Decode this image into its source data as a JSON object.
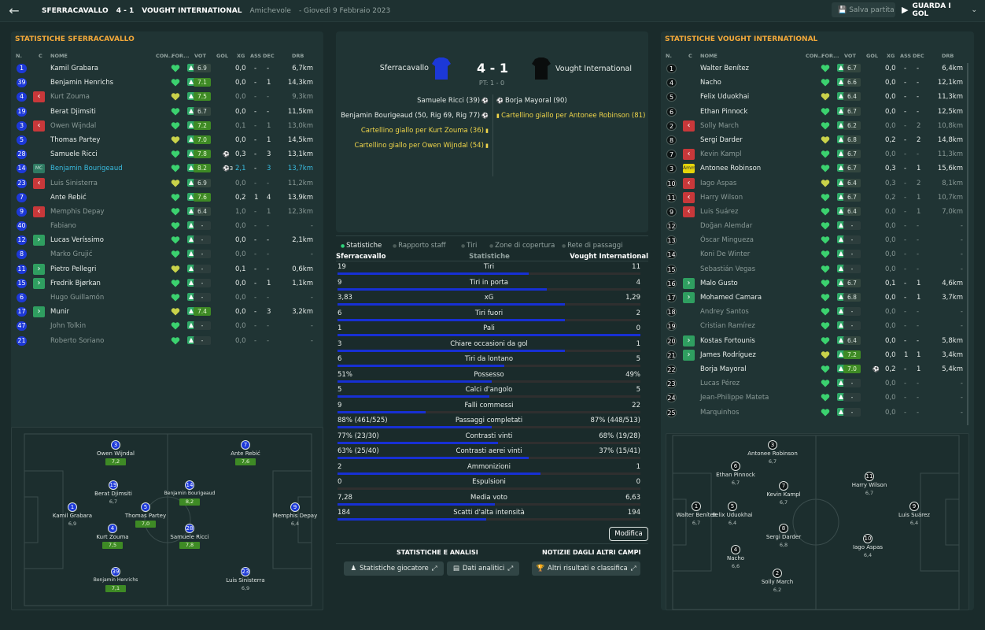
{
  "header": {
    "home": "SFERRACAVALLO",
    "score": "4 - 1",
    "away": "VOUGHT INTERNATIONAL",
    "competition": "Amichevole",
    "date": "Giovedì 9 Febbraio 2023",
    "save_label": "Salva partita",
    "watch_label": "GUARDA I GOL"
  },
  "columns": {
    "num": "N.",
    "c": "C",
    "name": "NOME",
    "con": "CON...",
    "form": "FOR...",
    "vot": "VOT",
    "gol": "GOL",
    "xg": "XG",
    "ass": "ASS",
    "dec": "DEC",
    "drb": "DRB"
  },
  "home_panel": {
    "title": "Statistiche Sferracavallo",
    "players": [
      {
        "num": "1",
        "style": "b",
        "name": "Kamil Grabara",
        "rating": "6.9",
        "rc": "n",
        "gol": "",
        "xg": "0,0",
        "ass": "-",
        "dec": "-",
        "drb": "6,7km"
      },
      {
        "num": "39",
        "style": "b",
        "name": "Benjamin Henrichs",
        "rating": "7.1",
        "rc": "g",
        "gol": "",
        "xg": "0,0",
        "ass": "-",
        "dec": "1",
        "drb": "14,3km"
      },
      {
        "num": "4",
        "style": "b",
        "sub": "out",
        "name": "Kurt Zouma",
        "dim": true,
        "rating": "7.5",
        "rc": "g",
        "gol": "",
        "xg": "0,0",
        "ass": "-",
        "dec": "-",
        "drb": "9,3km"
      },
      {
        "num": "19",
        "style": "b",
        "name": "Berat Djimsiti",
        "rating": "6.7",
        "rc": "n",
        "gol": "",
        "xg": "0,0",
        "ass": "-",
        "dec": "-",
        "drb": "11,5km"
      },
      {
        "num": "3",
        "style": "b",
        "sub": "out",
        "name": "Owen Wijndal",
        "dim": true,
        "rating": "7.2",
        "rc": "g",
        "gol": "",
        "xg": "0,1",
        "ass": "-",
        "dec": "1",
        "drb": "13,0km"
      },
      {
        "num": "5",
        "style": "b",
        "name": "Thomas Partey",
        "rating": "7.0",
        "rc": "g",
        "gol": "",
        "xg": "0,0",
        "ass": "-",
        "dec": "1",
        "drb": "14,5km"
      },
      {
        "num": "28",
        "style": "b",
        "name": "Samuele Ricci",
        "rating": "7.8",
        "rc": "g",
        "gol": "1",
        "xg": "0,3",
        "ass": "-",
        "dec": "3",
        "drb": "13,1km"
      },
      {
        "num": "14",
        "style": "b",
        "pos": "MC",
        "name": "Benjamin Bourigeaud",
        "sel": true,
        "rating": "8.2",
        "rc": "g",
        "gol": "3",
        "xg": "2,1",
        "ass": "-",
        "dec": "3",
        "drb": "13,7km"
      },
      {
        "num": "23",
        "style": "b",
        "sub": "out",
        "name": "Luis Sinisterra",
        "dim": true,
        "rating": "6.9",
        "rc": "n",
        "gol": "",
        "xg": "0,0",
        "ass": "-",
        "dec": "-",
        "drb": "11,2km"
      },
      {
        "num": "7",
        "style": "b",
        "name": "Ante Rebić",
        "rating": "7.6",
        "rc": "g",
        "gol": "",
        "xg": "0,2",
        "ass": "1",
        "dec": "4",
        "drb": "13,9km"
      },
      {
        "num": "9",
        "style": "b",
        "sub": "out",
        "name": "Memphis Depay",
        "dim": true,
        "rating": "6.4",
        "rc": "n",
        "gol": "",
        "xg": "1,0",
        "ass": "-",
        "dec": "1",
        "drb": "12,3km"
      },
      {
        "num": "40",
        "style": "b",
        "name": "Fabiano",
        "dim": true,
        "rating": "-",
        "rc": "na",
        "gol": "",
        "xg": "0,0",
        "ass": "-",
        "dec": "-",
        "drb": "-"
      },
      {
        "num": "12",
        "style": "b",
        "sub": "in",
        "name": "Lucas Veríssimo",
        "rating": "-",
        "rc": "na",
        "gol": "",
        "xg": "0,0",
        "ass": "-",
        "dec": "-",
        "drb": "2,1km"
      },
      {
        "num": "8",
        "style": "b",
        "name": "Marko Grujić",
        "dim": true,
        "rating": "-",
        "rc": "na",
        "gol": "",
        "xg": "0,0",
        "ass": "-",
        "dec": "-",
        "drb": "-"
      },
      {
        "num": "11",
        "style": "b",
        "sub": "in",
        "name": "Pietro Pellegri",
        "rating": "-",
        "rc": "na",
        "gol": "",
        "xg": "0,1",
        "ass": "-",
        "dec": "-",
        "drb": "0,6km"
      },
      {
        "num": "15",
        "style": "b",
        "sub": "in",
        "name": "Fredrik Bjørkan",
        "rating": "-",
        "rc": "na",
        "gol": "",
        "xg": "0,0",
        "ass": "-",
        "dec": "1",
        "drb": "1,1km"
      },
      {
        "num": "6",
        "style": "b",
        "name": "Hugo Guillamón",
        "dim": true,
        "rating": "-",
        "rc": "na",
        "gol": "",
        "xg": "0,0",
        "ass": "-",
        "dec": "-",
        "drb": "-"
      },
      {
        "num": "17",
        "style": "b",
        "sub": "in",
        "name": "Munir",
        "rating": "7.4",
        "rc": "g",
        "gol": "",
        "xg": "0,0",
        "ass": "-",
        "dec": "3",
        "drb": "3,2km"
      },
      {
        "num": "47",
        "style": "b",
        "name": "John Tolkin",
        "dim": true,
        "rating": "-",
        "rc": "na",
        "gol": "",
        "xg": "0,0",
        "ass": "-",
        "dec": "-",
        "drb": "-"
      },
      {
        "num": "21",
        "style": "b",
        "name": "Roberto Soriano",
        "dim": true,
        "rating": "-",
        "rc": "na",
        "gol": "",
        "xg": "0,0",
        "ass": "-",
        "dec": "-",
        "drb": "-"
      }
    ],
    "pitch": [
      {
        "num": "3",
        "name": "Owen Wijndal",
        "rating": "7,2",
        "g": true
      },
      {
        "num": "7",
        "name": "Ante Rebić",
        "rating": "7,6",
        "g": true
      },
      {
        "num": "19",
        "name": "Berat Djimsiti",
        "rating": "6,7",
        "g": false
      },
      {
        "num": "14",
        "name": "Benjamin Bourigeaud",
        "rating": "8,2",
        "g": true
      },
      {
        "num": "1",
        "name": "Kamil Grabara",
        "rating": "6,9",
        "g": false
      },
      {
        "num": "5",
        "name": "Thomas Partey",
        "rating": "7,0",
        "g": true
      },
      {
        "num": "9",
        "name": "Memphis Depay",
        "rating": "6,4",
        "g": false
      },
      {
        "num": "4",
        "name": "Kurt Zouma",
        "rating": "7,5",
        "g": true
      },
      {
        "num": "28",
        "name": "Samuele Ricci",
        "rating": "7,8",
        "g": true
      },
      {
        "num": "39",
        "name": "Benjamin Henrichs",
        "rating": "7,1",
        "g": true
      },
      {
        "num": "23",
        "name": "Luis Sinisterra",
        "rating": "6,9",
        "g": false
      }
    ]
  },
  "away_panel": {
    "title": "Statistiche Vought International",
    "players": [
      {
        "num": "1",
        "style": "k",
        "name": "Walter Benítez",
        "rating": "6.7",
        "rc": "n",
        "gol": "",
        "xg": "0,0",
        "ass": "-",
        "dec": "-",
        "drb": "6,4km"
      },
      {
        "num": "4",
        "style": "k",
        "name": "Nacho",
        "rating": "6.6",
        "rc": "n",
        "gol": "",
        "xg": "0,0",
        "ass": "-",
        "dec": "-",
        "drb": "12,1km"
      },
      {
        "num": "5",
        "style": "k",
        "name": "Felix Uduokhai",
        "rating": "6.4",
        "rc": "n",
        "gol": "",
        "xg": "0,0",
        "ass": "-",
        "dec": "-",
        "drb": "11,3km"
      },
      {
        "num": "6",
        "style": "k",
        "name": "Ethan Pinnock",
        "rating": "6.7",
        "rc": "n",
        "gol": "",
        "xg": "0,0",
        "ass": "-",
        "dec": "-",
        "drb": "12,5km"
      },
      {
        "num": "2",
        "style": "k",
        "sub": "out",
        "name": "Solly March",
        "dim": true,
        "rating": "6.2",
        "rc": "n",
        "gol": "",
        "xg": "0,0",
        "ass": "-",
        "dec": "2",
        "drb": "10,8km"
      },
      {
        "num": "8",
        "style": "k",
        "name": "Sergi Darder",
        "rating": "6.8",
        "rc": "n",
        "gol": "",
        "xg": "0,2",
        "ass": "-",
        "dec": "2",
        "drb": "14,8km"
      },
      {
        "num": "7",
        "style": "k",
        "sub": "out",
        "name": "Kevin Kampl",
        "dim": true,
        "rating": "6.7",
        "rc": "n",
        "gol": "",
        "xg": "0,0",
        "ass": "-",
        "dec": "-",
        "drb": "11,3km"
      },
      {
        "num": "3",
        "style": "k",
        "pos": "Amm",
        "name": "Antonee Robinson",
        "rating": "6.7",
        "rc": "n",
        "gol": "",
        "xg": "0,3",
        "ass": "-",
        "dec": "1",
        "drb": "15,6km"
      },
      {
        "num": "10",
        "style": "k",
        "sub": "out",
        "name": "Iago Aspas",
        "dim": true,
        "rating": "6.4",
        "rc": "n",
        "gol": "",
        "xg": "0,3",
        "ass": "-",
        "dec": "2",
        "drb": "8,1km"
      },
      {
        "num": "11",
        "style": "k",
        "sub": "out",
        "name": "Harry Wilson",
        "dim": true,
        "rating": "6.7",
        "rc": "n",
        "gol": "",
        "xg": "0,2",
        "ass": "-",
        "dec": "1",
        "drb": "10,7km"
      },
      {
        "num": "9",
        "style": "k",
        "sub": "out",
        "name": "Luis Suárez",
        "dim": true,
        "rating": "6.4",
        "rc": "n",
        "gol": "",
        "xg": "0,0",
        "ass": "-",
        "dec": "1",
        "drb": "7,0km"
      },
      {
        "num": "12",
        "style": "k",
        "name": "Doğan Alemdar",
        "dim": true,
        "rating": "-",
        "rc": "na",
        "gol": "",
        "xg": "0,0",
        "ass": "-",
        "dec": "-",
        "drb": "-"
      },
      {
        "num": "13",
        "style": "k",
        "name": "Óscar Mingueza",
        "dim": true,
        "rating": "-",
        "rc": "na",
        "gol": "",
        "xg": "0,0",
        "ass": "-",
        "dec": "-",
        "drb": "-"
      },
      {
        "num": "14",
        "style": "k",
        "name": "Koni De Winter",
        "dim": true,
        "rating": "-",
        "rc": "na",
        "gol": "",
        "xg": "0,0",
        "ass": "-",
        "dec": "-",
        "drb": "-"
      },
      {
        "num": "15",
        "style": "k",
        "name": "Sebastián Vegas",
        "dim": true,
        "rating": "-",
        "rc": "na",
        "gol": "",
        "xg": "0,0",
        "ass": "-",
        "dec": "-",
        "drb": "-"
      },
      {
        "num": "16",
        "style": "k",
        "sub": "in",
        "name": "Malo Gusto",
        "rating": "6.7",
        "rc": "n",
        "gol": "",
        "xg": "0,1",
        "ass": "-",
        "dec": "1",
        "drb": "4,6km"
      },
      {
        "num": "17",
        "style": "k",
        "sub": "in",
        "name": "Mohamed Camara",
        "rating": "6.8",
        "rc": "n",
        "gol": "",
        "xg": "0,0",
        "ass": "-",
        "dec": "1",
        "drb": "3,7km"
      },
      {
        "num": "18",
        "style": "k",
        "name": "Andrey Santos",
        "dim": true,
        "rating": "-",
        "rc": "na",
        "gol": "",
        "xg": "0,0",
        "ass": "-",
        "dec": "-",
        "drb": "-"
      },
      {
        "num": "19",
        "style": "k",
        "name": "Cristian Ramírez",
        "dim": true,
        "rating": "-",
        "rc": "na",
        "gol": "",
        "xg": "0,0",
        "ass": "-",
        "dec": "-",
        "drb": "-"
      },
      {
        "num": "20",
        "style": "k",
        "sub": "in",
        "name": "Kostas Fortounis",
        "rating": "6.4",
        "rc": "n",
        "gol": "",
        "xg": "0,0",
        "ass": "-",
        "dec": "-",
        "drb": "5,8km"
      },
      {
        "num": "21",
        "style": "k",
        "sub": "in",
        "name": "James Rodríguez",
        "rating": "7.2",
        "rc": "g",
        "gol": "",
        "xg": "0,0",
        "ass": "1",
        "dec": "1",
        "drb": "3,4km"
      },
      {
        "num": "22",
        "style": "k",
        "name": "Borja Mayoral",
        "rating": "7.0",
        "rc": "g",
        "gol": "1",
        "xg": "0,2",
        "ass": "-",
        "dec": "1",
        "drb": "5,4km"
      },
      {
        "num": "23",
        "style": "k",
        "name": "Lucas Pérez",
        "dim": true,
        "rating": "-",
        "rc": "na",
        "gol": "",
        "xg": "0,0",
        "ass": "-",
        "dec": "-",
        "drb": "-"
      },
      {
        "num": "24",
        "style": "k",
        "name": "Jean-Philippe Mateta",
        "dim": true,
        "rating": "-",
        "rc": "na",
        "gol": "",
        "xg": "0,0",
        "ass": "-",
        "dec": "-",
        "drb": "-"
      },
      {
        "num": "25",
        "style": "k",
        "name": "Marquinhos",
        "dim": true,
        "rating": "-",
        "rc": "na",
        "gol": "",
        "xg": "0,0",
        "ass": "-",
        "dec": "-",
        "drb": "-"
      }
    ],
    "pitch": [
      {
        "num": "3",
        "name": "Antonee Robinson",
        "rating": "6,7"
      },
      {
        "num": "6",
        "name": "Ethan Pinnock",
        "rating": "6,7"
      },
      {
        "num": "7",
        "name": "Kevin Kampl",
        "rating": "6,7"
      },
      {
        "num": "11",
        "name": "Harry Wilson",
        "rating": "6,7"
      },
      {
        "num": "1",
        "name": "Walter Benítez",
        "rating": "6,7"
      },
      {
        "num": "5",
        "name": "Felix Uduokhai",
        "rating": "6,4"
      },
      {
        "num": "9",
        "name": "Luis Suárez",
        "rating": "6,4"
      },
      {
        "num": "8",
        "name": "Sergi Darder",
        "rating": "6,8"
      },
      {
        "num": "10",
        "name": "Iago Aspas",
        "rating": "6,4"
      },
      {
        "num": "4",
        "name": "Nacho",
        "rating": "6,6"
      },
      {
        "num": "2",
        "name": "Solly March",
        "rating": "6,2"
      }
    ]
  },
  "match": {
    "home_team": "Sferracavallo",
    "away_team": "Vought International",
    "score": "4 - 1",
    "halftime": "PT: 1 - 0",
    "home_events": [
      {
        "text": "Samuele Ricci (39)",
        "type": "goal"
      },
      {
        "text": "Benjamin Bourigeaud (50, Rig 69, Rig 77)",
        "type": "goal"
      },
      {
        "text": "Cartellino giallo per Kurt Zouma (36)",
        "type": "yellow"
      },
      {
        "text": "Cartellino giallo per Owen Wijndal (54)",
        "type": "yellow"
      }
    ],
    "away_events": [
      {
        "text": "Borja Mayoral (90)",
        "type": "goal"
      },
      {
        "text": "Cartellino giallo per Antonee Robinson (81)",
        "type": "yellow"
      }
    ]
  },
  "tabs": [
    "Statistiche",
    "Rapporto staff",
    "Tiri",
    "Zone di copertura",
    "Rete di passaggi"
  ],
  "stats_header": {
    "home": "Sferracavallo",
    "mid": "Statistiche",
    "away": "Vought International"
  },
  "stats": [
    {
      "name": "Tiri",
      "home": "19",
      "away": "11",
      "frac": 0.63
    },
    {
      "name": "Tiri in porta",
      "home": "9",
      "away": "4",
      "frac": 0.69
    },
    {
      "name": "xG",
      "home": "3,83",
      "away": "1,29",
      "frac": 0.75
    },
    {
      "name": "Tiri fuori",
      "home": "6",
      "away": "2",
      "frac": 0.75
    },
    {
      "name": "Pali",
      "home": "1",
      "away": "0",
      "frac": 1.0
    },
    {
      "name": "Chiare occasioni da gol",
      "home": "3",
      "away": "1",
      "frac": 0.75
    },
    {
      "name": "Tiri da lontano",
      "home": "6",
      "away": "5",
      "frac": 0.55
    },
    {
      "name": "Possesso",
      "home": "51%",
      "away": "49%",
      "frac": 0.51
    },
    {
      "name": "Calci d'angolo",
      "home": "5",
      "away": "5",
      "frac": 0.5
    },
    {
      "name": "Falli commessi",
      "home": "9",
      "away": "22",
      "frac": 0.29
    },
    {
      "name": "Passaggi completati",
      "home": "88% (461/525)",
      "away": "87% (448/513)",
      "frac": 0.51
    },
    {
      "name": "Contrasti vinti",
      "home": "77% (23/30)",
      "away": "68% (19/28)",
      "frac": 0.53
    },
    {
      "name": "Contrasti aerei vinti",
      "home": "63% (25/40)",
      "away": "37% (15/41)",
      "frac": 0.63
    },
    {
      "name": "Ammonizioni",
      "home": "2",
      "away": "1",
      "frac": 0.67
    },
    {
      "name": "Espulsioni",
      "home": "0",
      "away": "0",
      "frac": 0.0
    },
    {
      "name": "Media voto",
      "home": "7,28",
      "away": "6,63",
      "frac": 0.52
    },
    {
      "name": "Scatti d'alta intensità",
      "home": "184",
      "away": "194",
      "frac": 0.49
    }
  ],
  "modifica_label": "Modifica",
  "sections": {
    "analysis_title": "Statistiche e analisi",
    "news_title": "Notizie dagli altri campi",
    "player_stats_btn": "Statistiche giocatore",
    "analytics_btn": "Dati analitici",
    "results_btn": "Altri risultati e classifica"
  },
  "colors": {
    "accent": "#f2a83a",
    "home_blue": "#1c38d8",
    "green_rating": "#3e8a25",
    "red_sub": "#c8383a",
    "green_sub": "#2f9e60"
  }
}
